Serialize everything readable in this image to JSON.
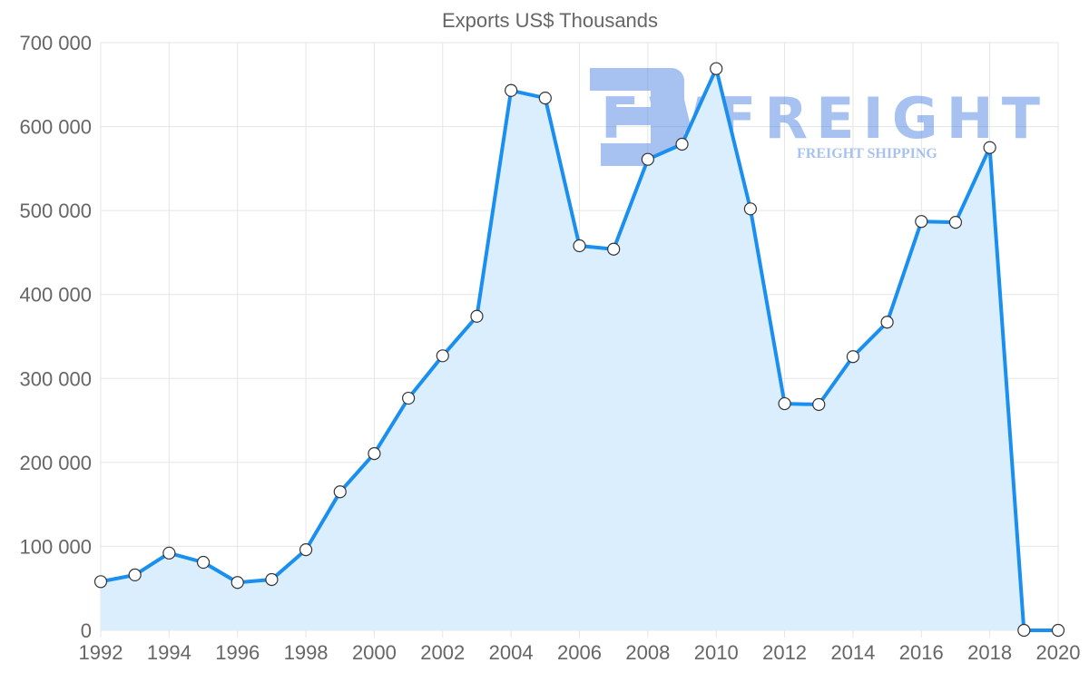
{
  "chart_data": {
    "type": "area",
    "title": "Exports US$ Thousands",
    "xlabel": "",
    "ylabel": "",
    "x": [
      1992,
      1993,
      1994,
      1995,
      1996,
      1997,
      1998,
      1999,
      2000,
      2001,
      2002,
      2003,
      2004,
      2005,
      2006,
      2007,
      2008,
      2009,
      2010,
      2011,
      2012,
      2013,
      2014,
      2015,
      2016,
      2017,
      2018,
      2019,
      2020
    ],
    "series": [
      {
        "name": "Exports US$ Thousands",
        "color": "#1a8ff0",
        "fill": "#dbeefe",
        "values": [
          58000,
          66000,
          92000,
          81000,
          57000,
          60500,
          96000,
          165000,
          210500,
          276500,
          327000,
          374000,
          643000,
          634000,
          458000,
          454000,
          561000,
          579000,
          669000,
          502000,
          270000,
          269000,
          326000,
          367000,
          487000,
          486000,
          575000,
          0,
          0
        ]
      }
    ],
    "xticks": [
      "1992",
      "1994",
      "1996",
      "1998",
      "2000",
      "2002",
      "2004",
      "2006",
      "2008",
      "2010",
      "2012",
      "2014",
      "2016",
      "2018",
      "2020"
    ],
    "yticks": [
      "0",
      "100 000",
      "200 000",
      "300 000",
      "400 000",
      "500 000",
      "600 000",
      "700 000"
    ],
    "xlim": [
      1992,
      2020
    ],
    "ylim": [
      0,
      700000
    ],
    "grid": true,
    "legend": "none"
  },
  "watermark": {
    "brand": "FWFREIGHT",
    "tagline": "FREIGHT SHIPPING"
  }
}
